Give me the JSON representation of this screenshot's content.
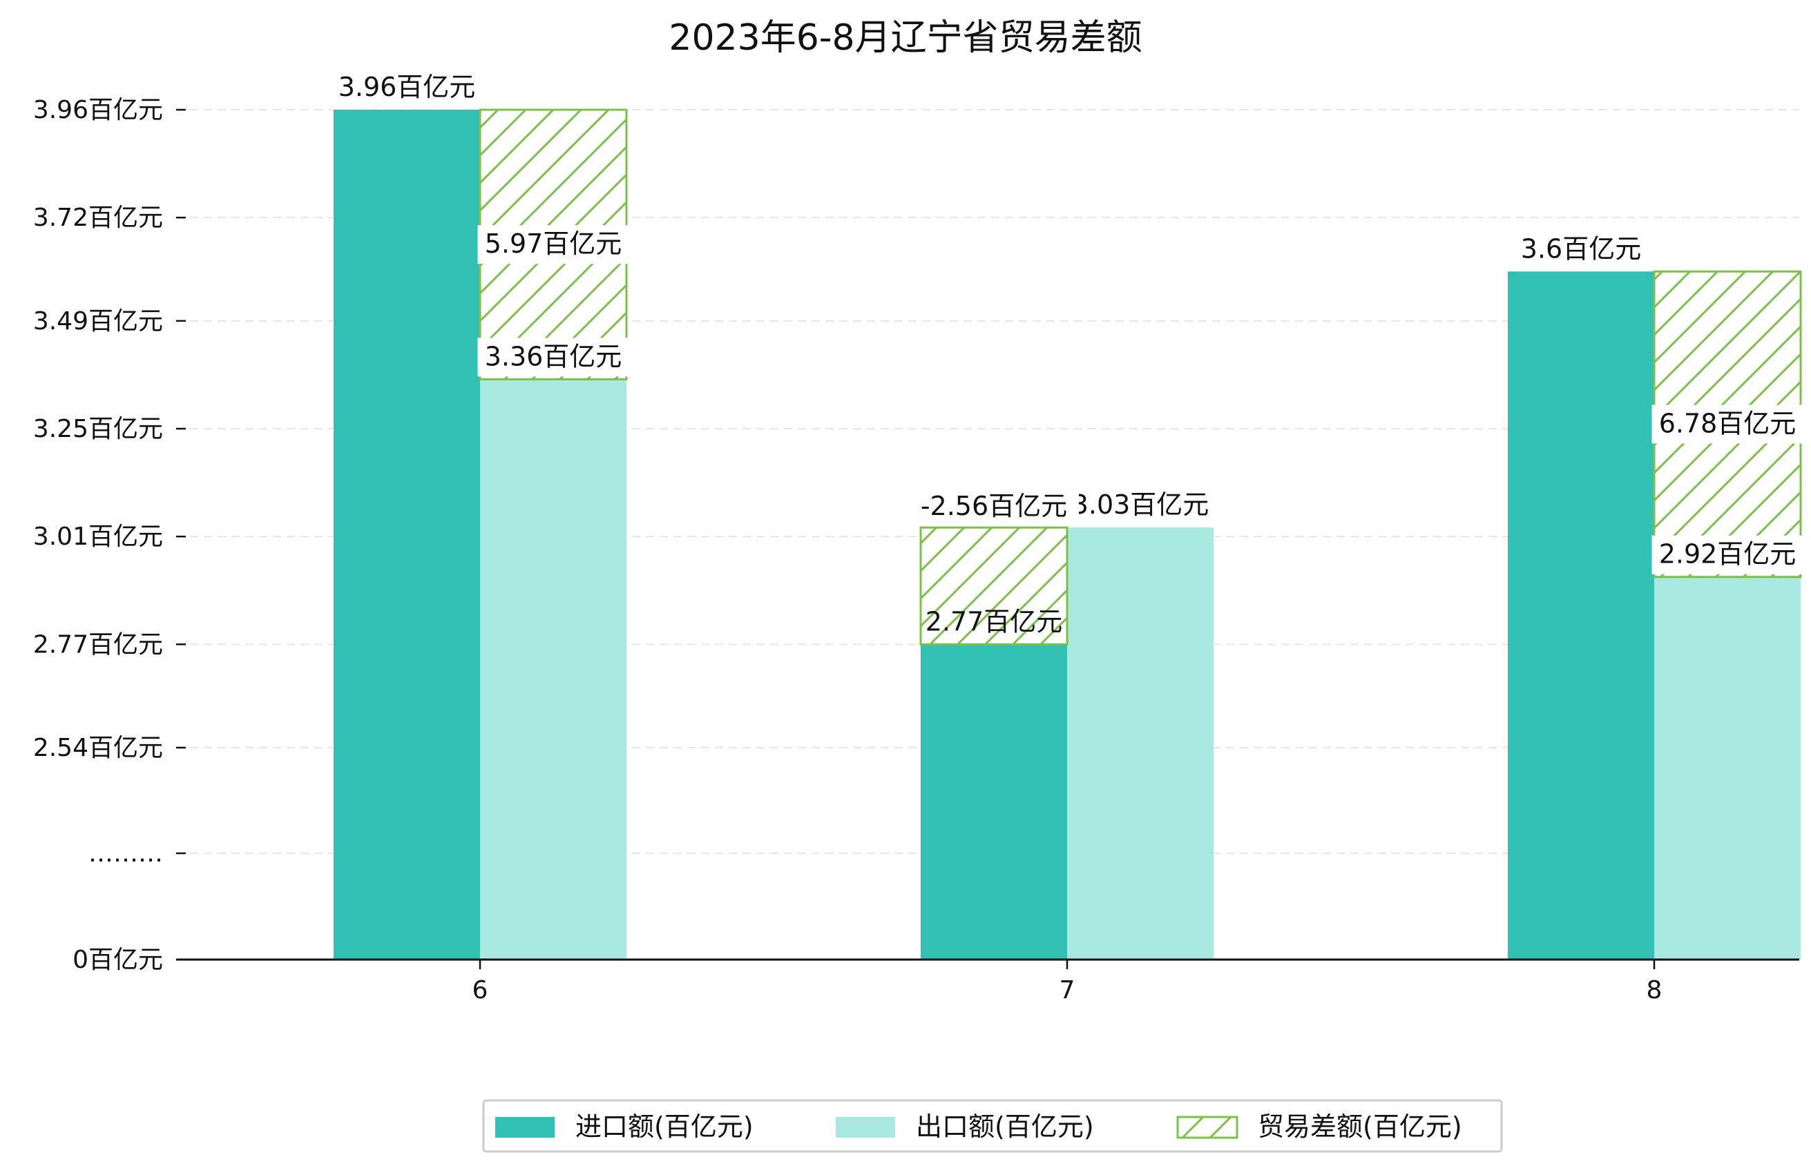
{
  "chart_data": {
    "type": "bar",
    "title": "2023年6-8月辽宁省贸易差额",
    "categories": [
      "6",
      "7",
      "8"
    ],
    "series": [
      {
        "name": "进口额(百亿元)",
        "values": [
          3.96,
          2.77,
          3.6
        ],
        "labels": [
          "3.96百亿元",
          "2.77百亿元",
          "3.6百亿元"
        ]
      },
      {
        "name": "出口额(百亿元)",
        "values": [
          3.36,
          3.03,
          2.92
        ],
        "labels": [
          "3.36百亿元",
          "3.03百亿元",
          "2.92百亿元"
        ]
      },
      {
        "name": "贸易差额(百亿元)",
        "values": [
          5.97,
          -2.56,
          6.78
        ],
        "labels": [
          "5.97百亿元",
          "-2.56百亿元",
          "6.78百亿元"
        ]
      }
    ],
    "yticks": [
      {
        "value": 0,
        "label": "0百亿元"
      },
      {
        "value": 2.3,
        "label": "………"
      },
      {
        "value": 2.54,
        "label": "2.54百亿元"
      },
      {
        "value": 2.77,
        "label": "2.77百亿元"
      },
      {
        "value": 3.01,
        "label": "3.01百亿元"
      },
      {
        "value": 3.25,
        "label": "3.25百亿元"
      },
      {
        "value": 3.49,
        "label": "3.49百亿元"
      },
      {
        "value": 3.72,
        "label": "3.72百亿元"
      },
      {
        "value": 3.96,
        "label": "3.96百亿元"
      }
    ],
    "y_axis_break": true,
    "grid": true,
    "legend_position": "bottom-center",
    "colors": {
      "import": "#33c0b4",
      "export": "#aae8e2",
      "balance": "#7cc04a"
    }
  }
}
